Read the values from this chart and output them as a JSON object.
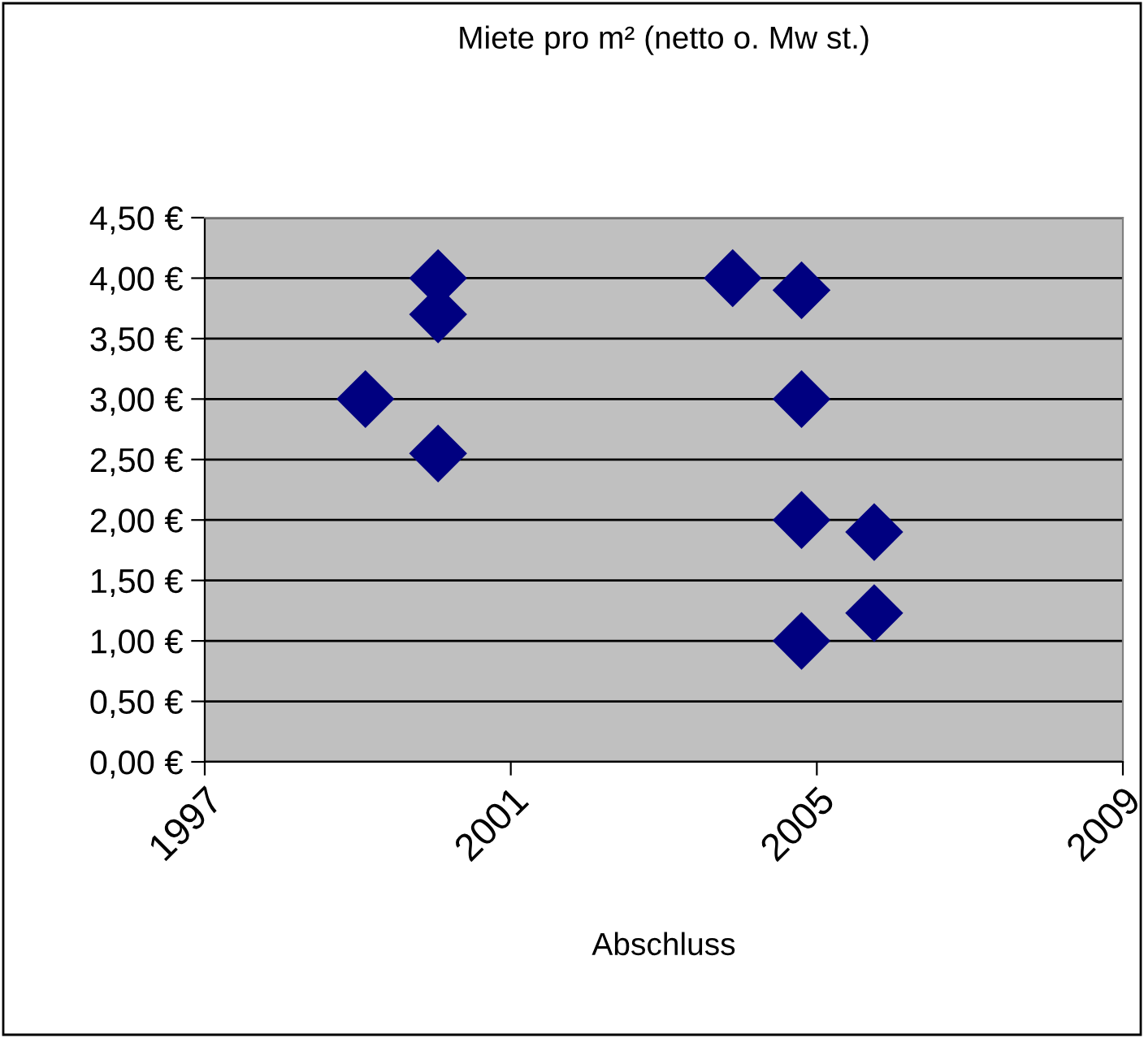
{
  "chart_data": {
    "type": "scatter",
    "title": "Miete pro m² (netto o. Mw st.)",
    "xlabel": "Abschluss",
    "x": [
      1999.1,
      2000.05,
      2000.05,
      2000.05,
      2003.9,
      2004.8,
      2004.8,
      2004.8,
      2004.8,
      2005.75,
      2005.75
    ],
    "values": [
      3.0,
      4.0,
      3.7,
      2.55,
      4.0,
      3.9,
      3.0,
      2.0,
      1.0,
      1.9,
      1.23
    ],
    "color": "#000080",
    "marker": "diamond",
    "xlim": [
      1997,
      2009
    ],
    "xticks": [
      1997,
      2001,
      2005,
      2009
    ],
    "ylim": [
      0,
      4.5
    ],
    "yticks": [
      {
        "value": 0,
        "label": "0,00 €"
      },
      {
        "value": 0.5,
        "label": "0,50 €"
      },
      {
        "value": 1,
        "label": "1,00 €"
      },
      {
        "value": 1.5,
        "label": "1,50 €"
      },
      {
        "value": 2,
        "label": "2,00 €"
      },
      {
        "value": 2.5,
        "label": "2,50 €"
      },
      {
        "value": 3,
        "label": "3,00 €"
      },
      {
        "value": 3.5,
        "label": "3,50 €"
      },
      {
        "value": 4,
        "label": "4,00 €"
      },
      {
        "value": 4.5,
        "label": "4,50 €"
      }
    ],
    "grid": "y"
  }
}
